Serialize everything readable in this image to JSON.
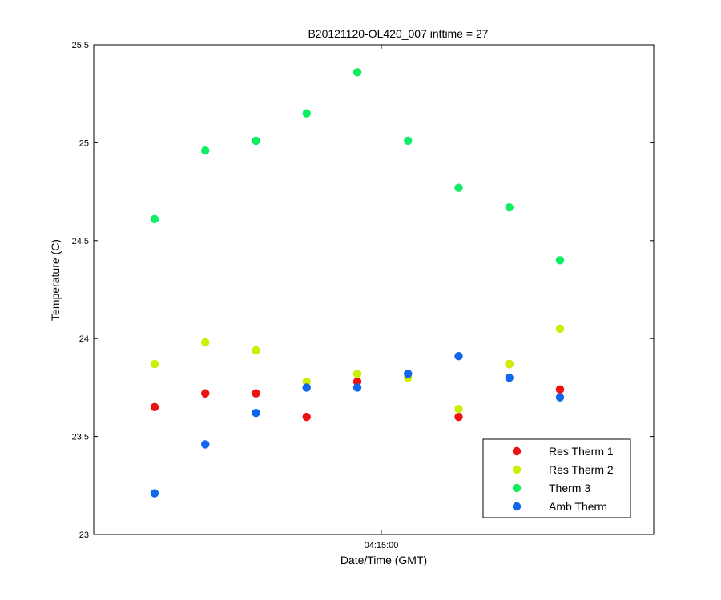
{
  "chart_data": {
    "type": "scatter",
    "title": "B20121120-OL420_007 inttime = 27",
    "xlabel": "Date/Time (GMT)",
    "ylabel": "Temperature (C)",
    "ylim": [
      23,
      25.5
    ],
    "yticks": [
      "23",
      "23.5",
      "24",
      "24.5",
      "25",
      "25.5"
    ],
    "xticks": [
      "04:15:00"
    ],
    "x": [
      1,
      2,
      3,
      4,
      5,
      6,
      7,
      8,
      9
    ],
    "grid": false,
    "legend_position": "bottom-right",
    "series": [
      {
        "name": "Res Therm 1",
        "color": "#ee1111",
        "points": [
          [
            1,
            23.65
          ],
          [
            2,
            23.72
          ],
          [
            3,
            23.72
          ],
          [
            4,
            23.6
          ],
          [
            5,
            23.78
          ],
          [
            7,
            23.6
          ],
          [
            8,
            23.87
          ],
          [
            9,
            23.74
          ]
        ]
      },
      {
        "name": "Res Therm 2",
        "color": "#ccee00",
        "points": [
          [
            1,
            23.87
          ],
          [
            2,
            23.98
          ],
          [
            3,
            23.94
          ],
          [
            4,
            23.78
          ],
          [
            5,
            23.82
          ],
          [
            6,
            23.8
          ],
          [
            7,
            23.64
          ],
          [
            8,
            23.87
          ],
          [
            9,
            24.05
          ]
        ]
      },
      {
        "name": "Therm 3",
        "color": "#11ee66",
        "points": [
          [
            1,
            24.61
          ],
          [
            2,
            24.96
          ],
          [
            3,
            25.01
          ],
          [
            4,
            25.15
          ],
          [
            5,
            25.36
          ],
          [
            6,
            25.01
          ],
          [
            7,
            24.77
          ],
          [
            8,
            24.67
          ],
          [
            9,
            24.4
          ]
        ]
      },
      {
        "name": "Amb Therm",
        "color": "#1166ee",
        "points": [
          [
            1,
            23.21
          ],
          [
            2,
            23.46
          ],
          [
            3,
            23.62
          ],
          [
            4,
            23.75
          ],
          [
            5,
            23.75
          ],
          [
            6,
            23.82
          ],
          [
            7,
            23.91
          ],
          [
            8,
            23.8
          ],
          [
            9,
            23.7
          ]
        ]
      }
    ]
  }
}
